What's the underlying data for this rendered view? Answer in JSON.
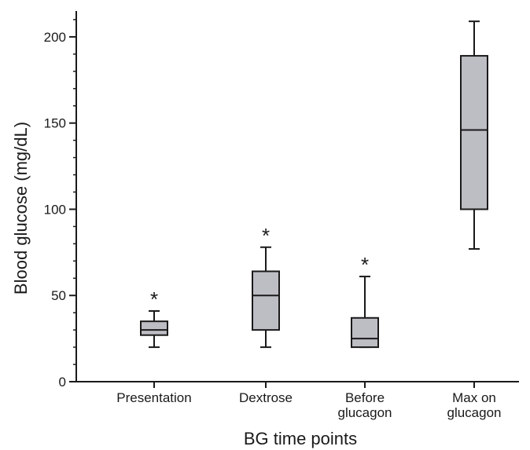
{
  "chart_data": {
    "type": "box",
    "xlabel": "BG time points",
    "ylabel": "Blood glucose (mg/dL)",
    "ylim": [
      0,
      215
    ],
    "yticks": [
      0,
      50,
      100,
      150,
      200
    ],
    "grid": false,
    "legend": "none",
    "categories": [
      [
        "Presentation"
      ],
      [
        "Dextrose"
      ],
      [
        "Before",
        "glucagon"
      ],
      [
        "Max on",
        "glucagon"
      ]
    ],
    "boxes": [
      {
        "whisker_low": 20,
        "q1": 27,
        "median": 30,
        "q3": 35,
        "whisker_high": 41,
        "annotation": "*"
      },
      {
        "whisker_low": 20,
        "q1": 30,
        "median": 50,
        "q3": 64,
        "whisker_high": 78,
        "annotation": "*"
      },
      {
        "whisker_low": 20,
        "q1": 20,
        "median": 25,
        "q3": 37,
        "whisker_high": 61,
        "annotation": "*"
      },
      {
        "whisker_low": 77,
        "q1": 100,
        "median": 146,
        "q3": 189,
        "whisker_high": 209,
        "annotation": ""
      }
    ],
    "colors": {
      "box_fill": "#bdbdc4",
      "line": "#1a1a1a"
    }
  }
}
